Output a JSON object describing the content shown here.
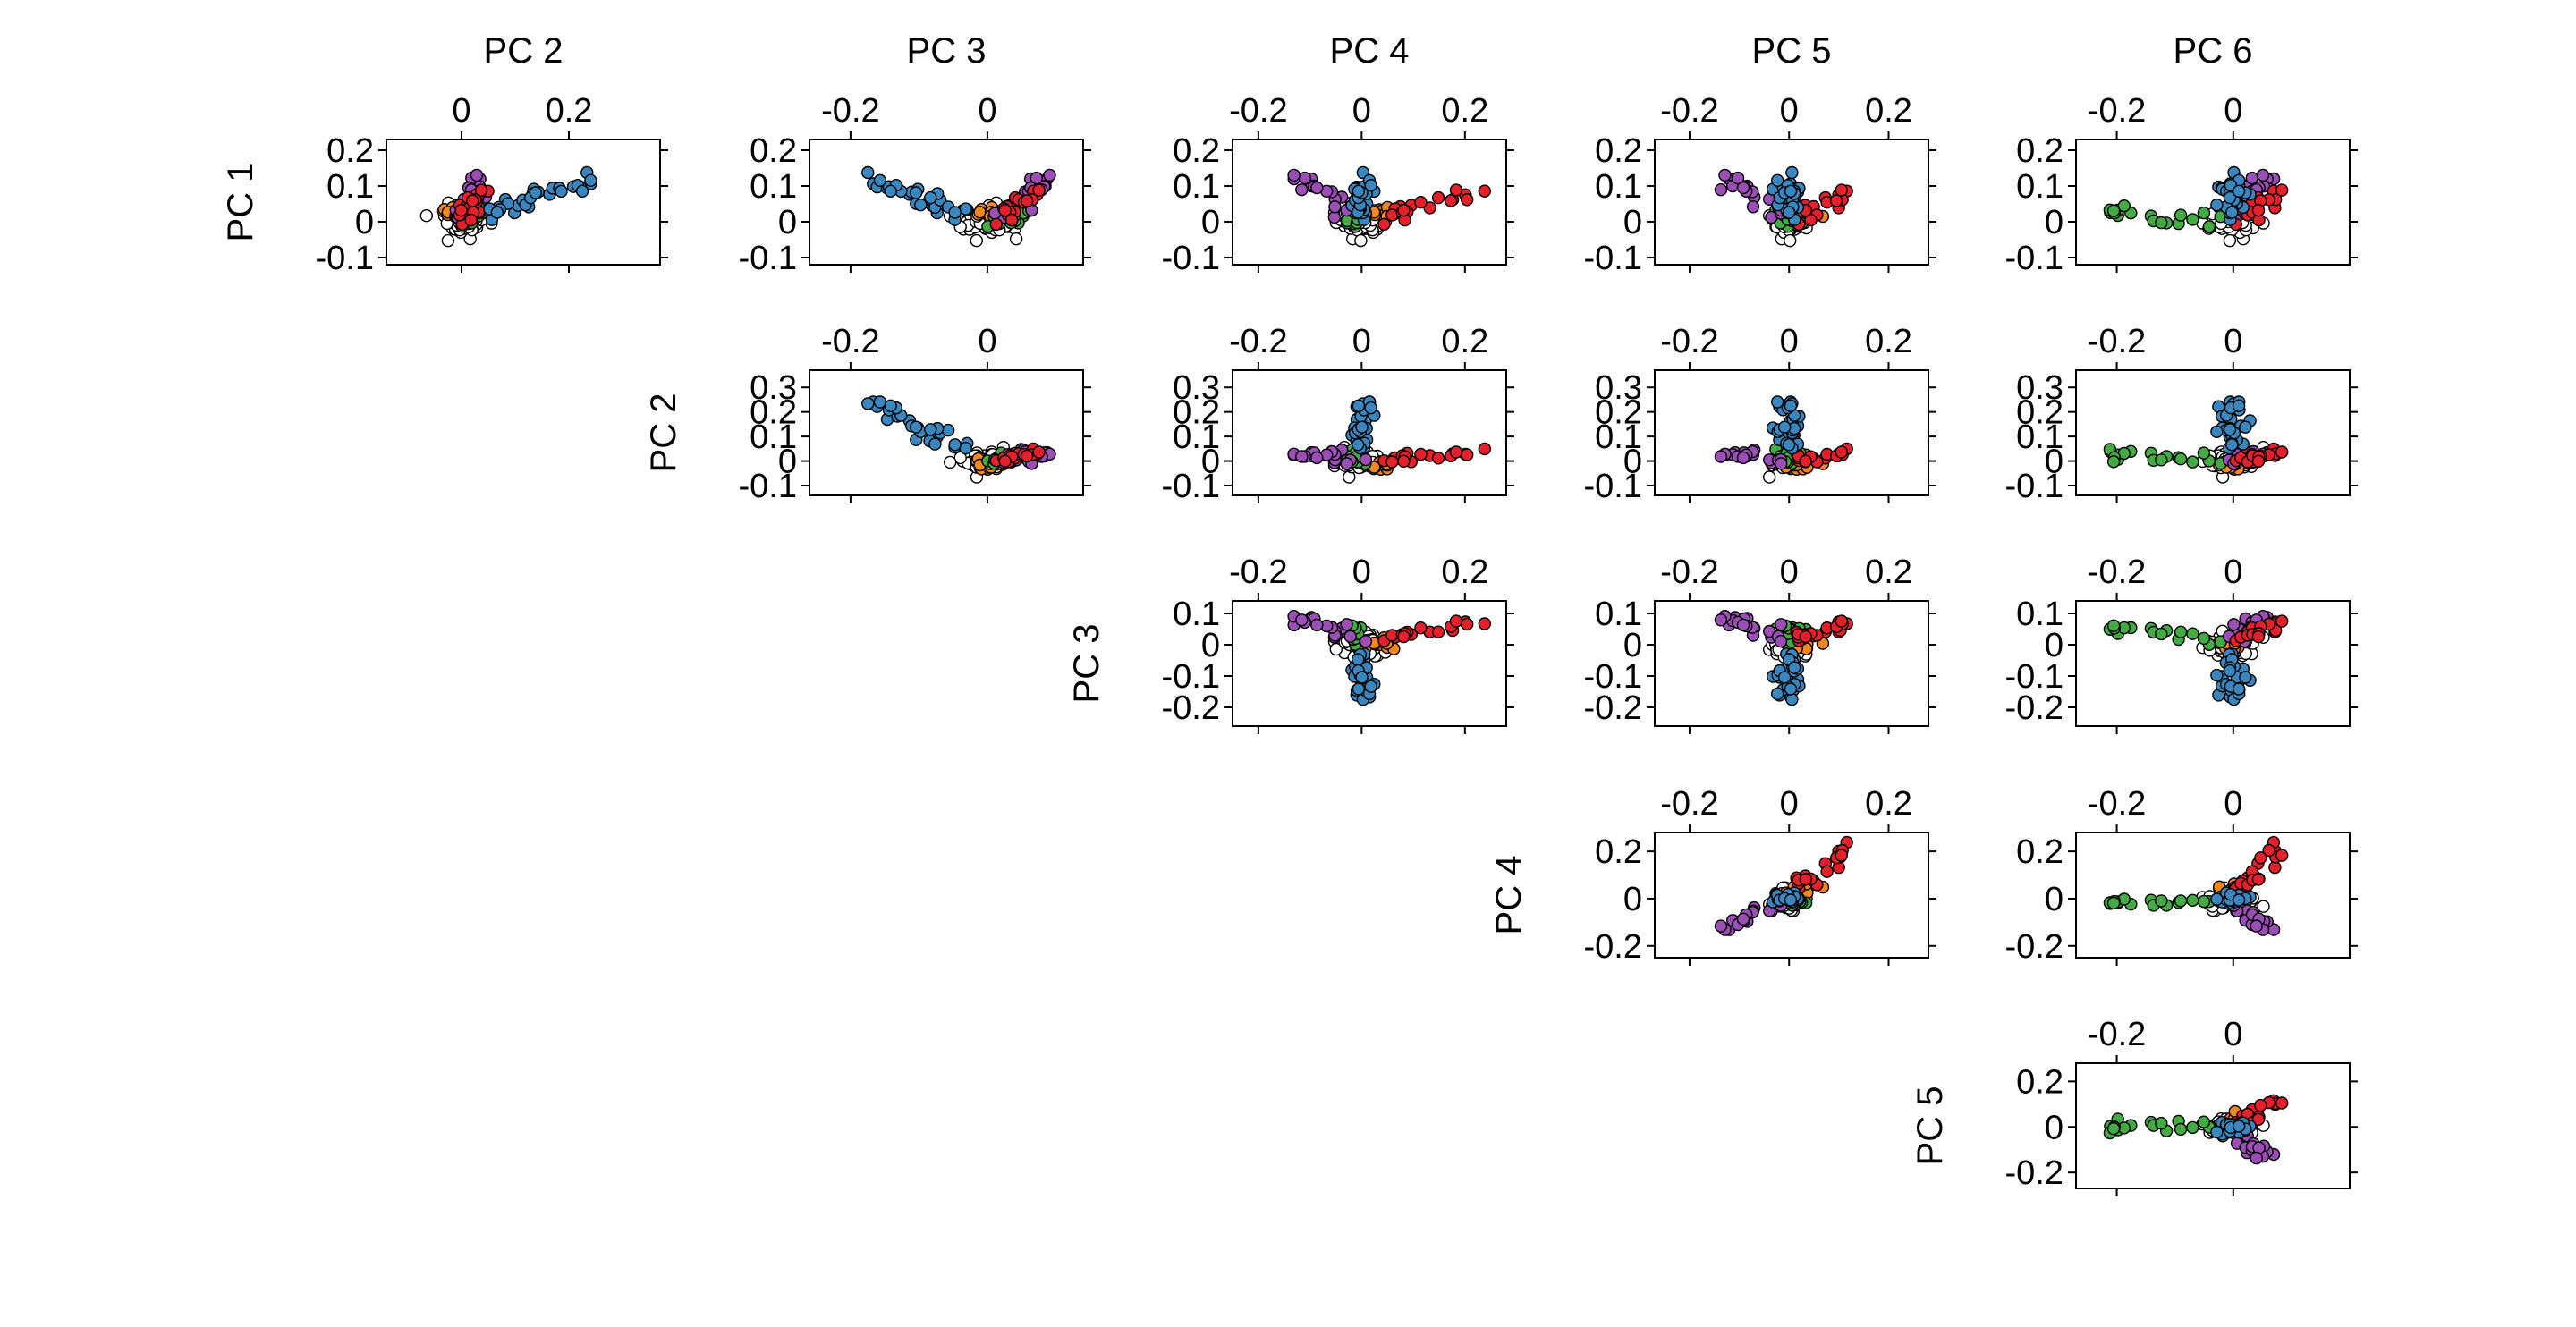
{
  "chart_data": {
    "type": "scatter",
    "title": "",
    "layout": "pairwise principal component scatter matrix (upper triangle)",
    "column_labels": [
      "PC 2",
      "PC 3",
      "PC 4",
      "PC 5",
      "PC 6"
    ],
    "row_labels": [
      "PC 1",
      "PC 2",
      "PC 3",
      "PC 4",
      "PC 5"
    ],
    "legend": "none",
    "grid": false,
    "groups": [
      {
        "id": "blue",
        "color": "#3a87c0"
      },
      {
        "id": "purple",
        "color": "#9b4fb6"
      },
      {
        "id": "red",
        "color": "#e4202a"
      },
      {
        "id": "orange",
        "color": "#f4871e"
      },
      {
        "id": "green",
        "color": "#44aa44"
      },
      {
        "id": "white",
        "color": "#ffffff"
      }
    ],
    "point_outline": "#000000",
    "axes": {
      "PC 1": {
        "range": [
          -0.12,
          0.23
        ],
        "ticks": [
          -0.1,
          0,
          0.1,
          0.2
        ],
        "tick_labels": [
          "-0.1",
          "0",
          "0.1",
          "0.2"
        ]
      },
      "PC 2": {
        "range": [
          -0.14,
          0.37
        ],
        "ticks": [
          -0.1,
          0,
          0.1,
          0.2,
          0.3
        ],
        "tick_labels": [
          "-0.1",
          "0",
          "0.1",
          "0.2",
          "0.3"
        ],
        "top_ticks": [
          0,
          0.2
        ],
        "top_tick_labels": [
          "0",
          "0.2"
        ]
      },
      "PC 3": {
        "range": [
          -0.26,
          0.14
        ],
        "ticks": [
          -0.2,
          -0.1,
          0,
          0.1
        ],
        "tick_labels": [
          "-0.2",
          "-0.1",
          "0",
          "0.1"
        ],
        "top_ticks": [
          -0.2,
          0
        ],
        "top_tick_labels": [
          "-0.2",
          "0"
        ]
      },
      "PC 4": {
        "range": [
          -0.25,
          0.28
        ],
        "ticks": [
          -0.2,
          0,
          0.2
        ],
        "tick_labels": [
          "-0.2",
          "0",
          "0.2"
        ],
        "top_ticks": [
          -0.2,
          0,
          0.2
        ],
        "top_tick_labels": [
          "-0.2",
          "0",
          "0.2"
        ]
      },
      "PC 5": {
        "range": [
          -0.27,
          0.28
        ],
        "ticks": [
          -0.2,
          0,
          0.2
        ],
        "tick_labels": [
          "-0.2",
          "0",
          "0.2"
        ],
        "top_ticks": [
          -0.2,
          0,
          0.2
        ],
        "top_tick_labels": [
          "-0.2",
          "0",
          "0.2"
        ]
      },
      "PC 6": {
        "range": [
          -0.27,
          0.2
        ],
        "top_ticks": [
          -0.2,
          0
        ],
        "top_tick_labels": [
          "-0.2",
          "0"
        ]
      }
    },
    "group_loadings_note": "approximate per-group direction in PC space (PC1..PC6) read from the panels",
    "group_directions": {
      "blue": [
        0.12,
        0.25,
        -0.18,
        0.0,
        0.0,
        0.0
      ],
      "purple": [
        0.12,
        0.03,
        0.09,
        -0.12,
        -0.12,
        0.05
      ],
      "red": [
        0.09,
        0.03,
        0.08,
        0.22,
        0.12,
        0.07
      ],
      "orange": [
        0.03,
        -0.02,
        0.0,
        0.06,
        0.04,
        0.0
      ],
      "green": [
        0.03,
        0.02,
        0.06,
        -0.02,
        0.0,
        -0.22
      ],
      "white": [
        0.0,
        0.0,
        0.0,
        0.0,
        0.0,
        0.0
      ]
    },
    "points_per_group": {
      "blue": 28,
      "purple": 18,
      "red": 18,
      "orange": 10,
      "green": 18,
      "white": 90
    }
  }
}
